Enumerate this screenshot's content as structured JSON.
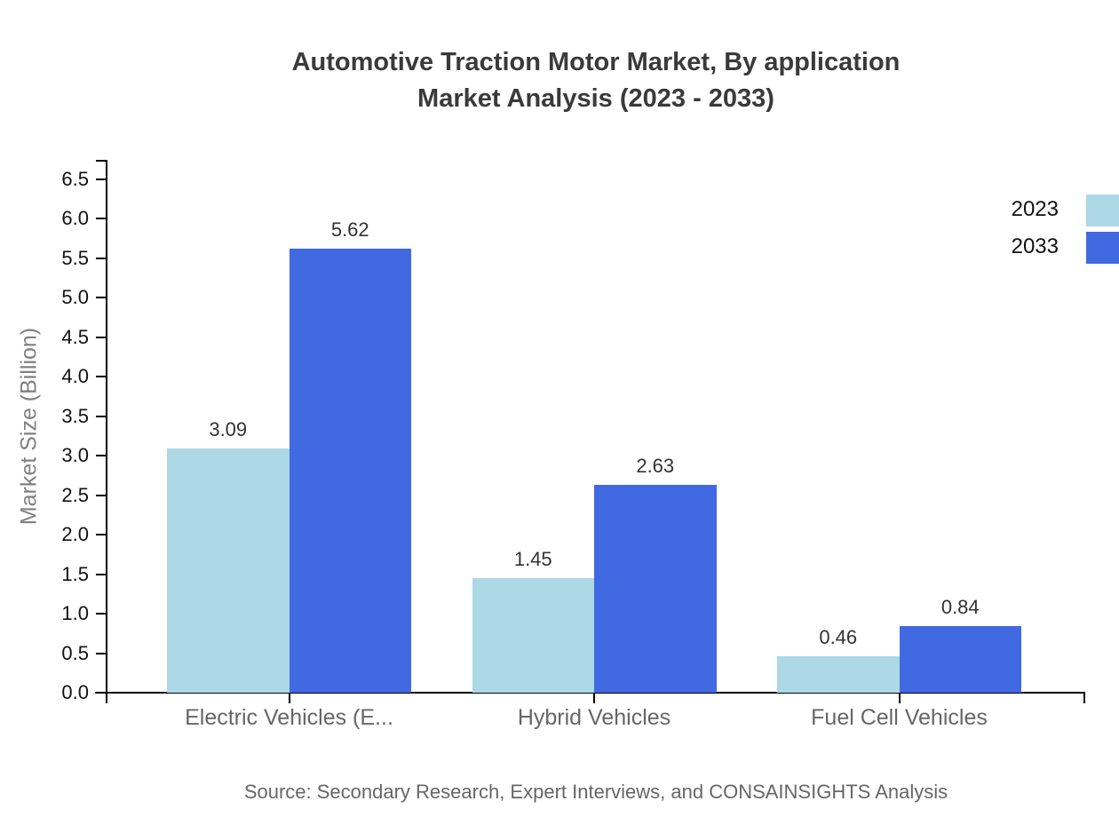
{
  "title": {
    "line1": "Automotive Traction Motor Market, By application",
    "line2": "Market Analysis (2023 - 2033)"
  },
  "source": "Source: Secondary Research, Expert Interviews, and CONSAINSIGHTS Analysis",
  "colors": {
    "series_2023": "#ADD8E6",
    "series_2033": "#4169E1",
    "axis": "#000000",
    "tick_label": "#111111",
    "category_label": "#666666",
    "value_label": "#333333",
    "title": "#3a3a3a",
    "source": "#666666",
    "ylabel": "#808080",
    "background": "#ffffff"
  },
  "chart_data": {
    "type": "bar",
    "title": "Automotive Traction Motor Market, By application Market Analysis (2023 - 2033)",
    "categories": [
      "Electric Vehicles (E...",
      "Hybrid Vehicles",
      "Fuel Cell Vehicles"
    ],
    "series": [
      {
        "name": "2023",
        "color": "#ADD8E6",
        "values": [
          3.09,
          1.45,
          0.46
        ]
      },
      {
        "name": "2033",
        "color": "#4169E1",
        "values": [
          5.62,
          2.63,
          0.84
        ]
      }
    ],
    "xlabel": "",
    "ylabel": "Market Size (Billion)",
    "ylim": [
      0.0,
      6.5
    ],
    "ytick_step": 0.5,
    "value_label_decimals": 2,
    "grid": false,
    "legend_position": "top-right"
  }
}
